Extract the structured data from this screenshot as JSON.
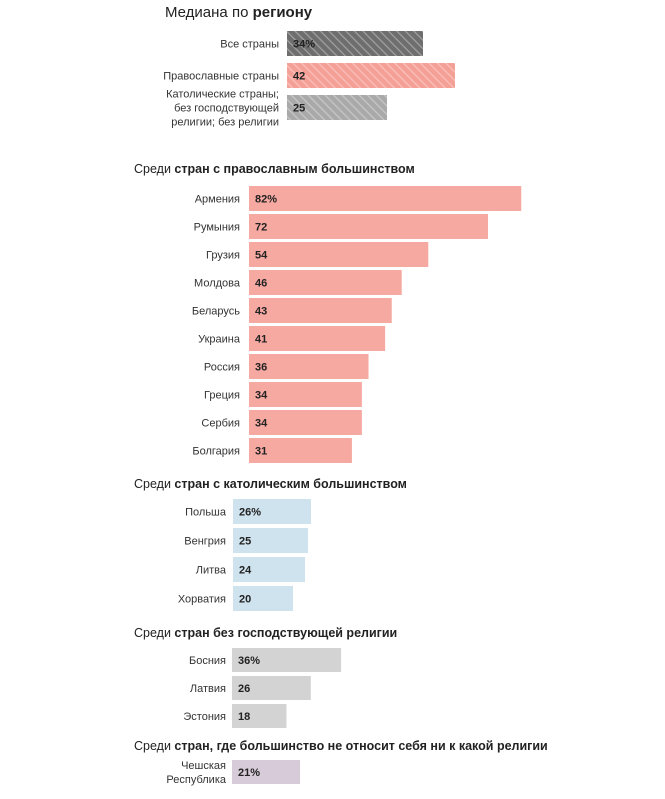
{
  "colors": {
    "region_all": "#6e6e6e",
    "region_orthodox": "#f5a097",
    "region_catholic": "#a9a9a9",
    "orthodox": "#f6a9a1",
    "catholic": "#cfe3ef",
    "no_dominant": "#d3d3d3",
    "unaffiliated": "#d8cbd9"
  },
  "chart_data": {
    "type": "bar",
    "title": {
      "normal": "Медиана по ",
      "bold": "региону"
    },
    "unit": "%",
    "groups": [
      {
        "id": "region",
        "heading": null,
        "series_color": "region",
        "categories": [
          [
            "Все страны"
          ],
          [
            "Православные страны"
          ],
          [
            "Католические страны;",
            "без господствующей",
            "религии; без религии"
          ]
        ],
        "values": [
          34,
          42,
          25
        ],
        "value_labels": [
          "34%",
          "42",
          "25"
        ],
        "bar_colors": [
          "#6e6e6e",
          "#f5a097",
          "#a9a9a9"
        ],
        "hatched": true
      },
      {
        "id": "orthodox",
        "heading": {
          "normal": "Среди ",
          "bold": "стран с православным большинством"
        },
        "categories": [
          [
            "Армения"
          ],
          [
            "Румыния"
          ],
          [
            "Грузия"
          ],
          [
            "Молдова"
          ],
          [
            "Беларусь"
          ],
          [
            "Украина"
          ],
          [
            "Россия"
          ],
          [
            "Греция"
          ],
          [
            "Сербия"
          ],
          [
            "Болгария"
          ]
        ],
        "values": [
          82,
          72,
          54,
          46,
          43,
          41,
          36,
          34,
          34,
          31
        ],
        "value_labels": [
          "82%",
          "72",
          "54",
          "46",
          "43",
          "41",
          "36",
          "34",
          "34",
          "31"
        ],
        "color": "#f6a9a1"
      },
      {
        "id": "catholic",
        "heading": {
          "normal": "Среди ",
          "bold": "стран с католическим большинством"
        },
        "categories": [
          [
            "Польша"
          ],
          [
            "Венгрия"
          ],
          [
            "Литва"
          ],
          [
            "Хорватия"
          ]
        ],
        "values": [
          26,
          25,
          24,
          20
        ],
        "value_labels": [
          "26%",
          "25",
          "24",
          "20"
        ],
        "color": "#cfe3ef"
      },
      {
        "id": "no_dominant",
        "heading": {
          "normal": "Среди ",
          "bold": "стран без господствующей религии"
        },
        "categories": [
          [
            "Босния"
          ],
          [
            "Латвия"
          ],
          [
            "Эстония"
          ]
        ],
        "values": [
          36,
          26,
          18
        ],
        "value_labels": [
          "36%",
          "26",
          "18"
        ],
        "color": "#d3d3d3"
      },
      {
        "id": "unaffiliated",
        "heading": {
          "normal": "Среди ",
          "bold": "стран, где большинство не относит себя ни к какой религии"
        },
        "categories": [
          [
            "Чешская",
            "Республика"
          ]
        ],
        "values": [
          21
        ],
        "value_labels": [
          "21%"
        ],
        "color": "#d8cbd9"
      }
    ]
  }
}
